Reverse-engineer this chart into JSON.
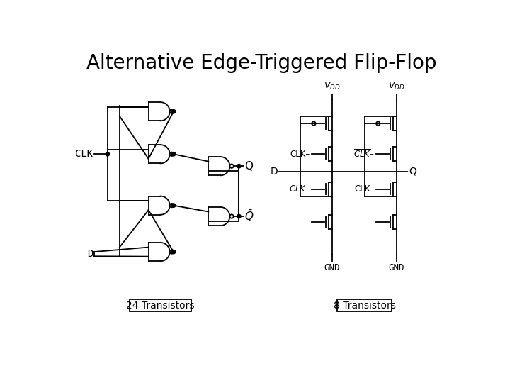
{
  "title": "Alternative Edge-Triggered Flip-Flop",
  "title_fontsize": 20,
  "bg_color": "#ffffff",
  "line_color": "#000000",
  "label_24": "24 Transistors",
  "label_8": "8 Transistors"
}
